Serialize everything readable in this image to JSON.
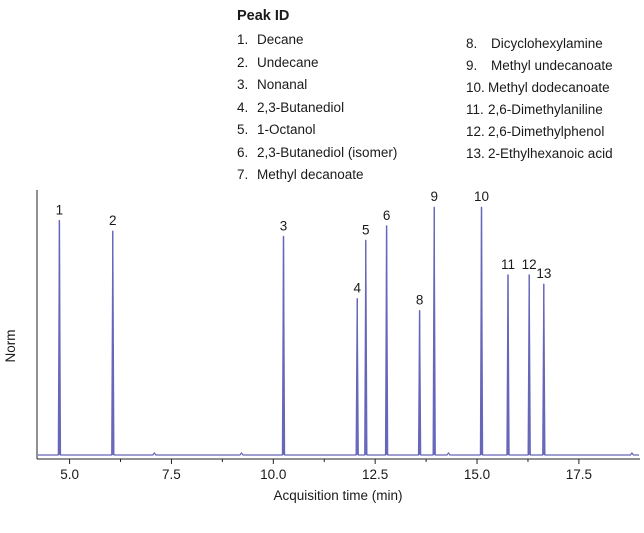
{
  "legend": {
    "title": "Peak ID",
    "items": [
      {
        "num": "1.",
        "name": "Decane"
      },
      {
        "num": "2.",
        "name": "Undecane"
      },
      {
        "num": "3.",
        "name": "Nonanal"
      },
      {
        "num": "4.",
        "name": "2,3-Butanediol"
      },
      {
        "num": "5.",
        "name": "1-Octanol"
      },
      {
        "num": "6.",
        "name": "2,3-Butanediol (isomer)"
      },
      {
        "num": "7.",
        "name": "Methyl decanoate"
      },
      {
        "num": "8.",
        "name": "Dicyclohexylamine"
      },
      {
        "num": "9.",
        "name": "Methyl undecanoate"
      },
      {
        "num": "10.",
        "name": "Methyl dodecanoate"
      },
      {
        "num": "11.",
        "name": "2,6-Dimethylaniline"
      },
      {
        "num": "12.",
        "name": "2,6-Dimethylphenol"
      },
      {
        "num": "13.",
        "name": "2-Ethylhexanoic acid"
      }
    ]
  },
  "chart_data": {
    "type": "line",
    "xlabel": "Acquisition time (min)",
    "ylabel": "Norm",
    "xlim": [
      4.2,
      19.0
    ],
    "ylim": [
      0,
      1.0
    ],
    "xticks": [
      5.0,
      7.5,
      10.0,
      12.5,
      15.0,
      17.5
    ],
    "xtick_labels": [
      "5.0",
      "7.5",
      "10.0",
      "12.5",
      "15.0",
      "17.5"
    ],
    "grid": false,
    "line_color": "#6666bb",
    "baseline": 0.01,
    "peaks": [
      {
        "label": "1",
        "x": 4.75,
        "height": 0.895
      },
      {
        "label": "2",
        "x": 6.06,
        "height": 0.855
      },
      {
        "label": "3",
        "x": 10.25,
        "height": 0.835
      },
      {
        "label": "4",
        "x": 12.06,
        "height": 0.6
      },
      {
        "label": "5",
        "x": 12.27,
        "height": 0.82
      },
      {
        "label": "6",
        "x": 12.78,
        "height": 0.875
      },
      {
        "label": "8",
        "x": 13.59,
        "height": 0.555
      },
      {
        "label": "9",
        "x": 13.95,
        "height": 0.945
      },
      {
        "label": "10",
        "x": 15.11,
        "height": 0.945
      },
      {
        "label": "11",
        "x": 15.76,
        "height": 0.69
      },
      {
        "label": "12",
        "x": 16.28,
        "height": 0.69
      },
      {
        "label": "13",
        "x": 16.64,
        "height": 0.655
      }
    ]
  }
}
